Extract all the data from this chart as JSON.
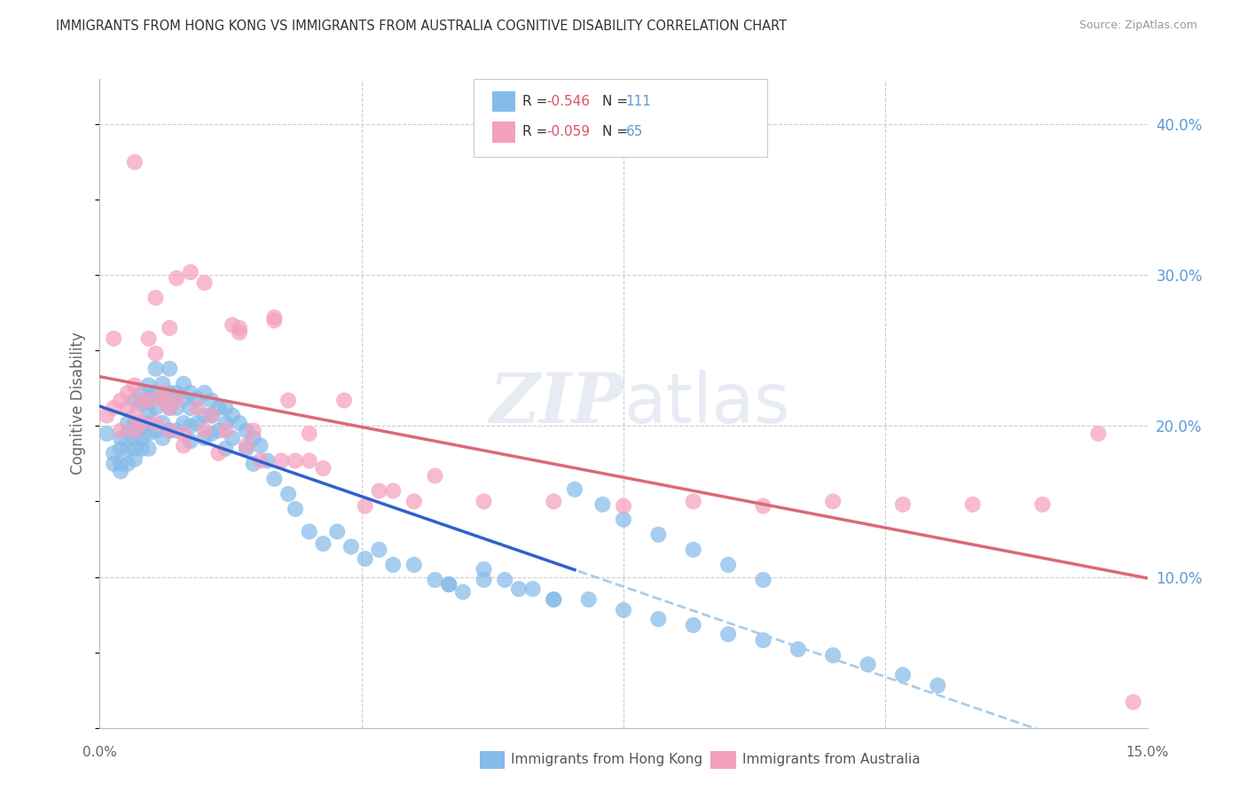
{
  "title": "IMMIGRANTS FROM HONG KONG VS IMMIGRANTS FROM AUSTRALIA COGNITIVE DISABILITY CORRELATION CHART",
  "source": "Source: ZipAtlas.com",
  "ylabel": "Cognitive Disability",
  "legend_label_hk": "Immigrants from Hong Kong",
  "legend_label_au": "Immigrants from Australia",
  "color_hk": "#85BBE8",
  "color_au": "#F4A0BE",
  "trendline_hk_color": "#3060CC",
  "trendline_au_color": "#DC6878",
  "trendline_ext_color": "#AACCE8",
  "background_color": "#FFFFFF",
  "xmin": 0.0,
  "xmax": 0.15,
  "ymin": 0.0,
  "ymax": 0.43,
  "hk_x": [
    0.001,
    0.002,
    0.002,
    0.003,
    0.003,
    0.003,
    0.003,
    0.004,
    0.004,
    0.004,
    0.004,
    0.005,
    0.005,
    0.005,
    0.005,
    0.005,
    0.006,
    0.006,
    0.006,
    0.006,
    0.006,
    0.007,
    0.007,
    0.007,
    0.007,
    0.007,
    0.007,
    0.008,
    0.008,
    0.008,
    0.008,
    0.009,
    0.009,
    0.009,
    0.009,
    0.01,
    0.01,
    0.01,
    0.01,
    0.011,
    0.011,
    0.011,
    0.012,
    0.012,
    0.012,
    0.013,
    0.013,
    0.013,
    0.013,
    0.014,
    0.014,
    0.015,
    0.015,
    0.015,
    0.016,
    0.016,
    0.016,
    0.017,
    0.017,
    0.018,
    0.018,
    0.018,
    0.019,
    0.019,
    0.02,
    0.021,
    0.021,
    0.022,
    0.022,
    0.023,
    0.024,
    0.025,
    0.027,
    0.028,
    0.03,
    0.032,
    0.034,
    0.036,
    0.038,
    0.04,
    0.042,
    0.045,
    0.048,
    0.05,
    0.052,
    0.055,
    0.058,
    0.062,
    0.065,
    0.07,
    0.075,
    0.08,
    0.085,
    0.09,
    0.095,
    0.1,
    0.105,
    0.11,
    0.115,
    0.12,
    0.05,
    0.055,
    0.06,
    0.065,
    0.068,
    0.072,
    0.075,
    0.08,
    0.085,
    0.09,
    0.095
  ],
  "hk_y": [
    0.195,
    0.182,
    0.175,
    0.192,
    0.185,
    0.175,
    0.17,
    0.202,
    0.195,
    0.185,
    0.175,
    0.217,
    0.202,
    0.192,
    0.185,
    0.178,
    0.222,
    0.215,
    0.2,
    0.192,
    0.185,
    0.227,
    0.218,
    0.21,
    0.202,
    0.195,
    0.185,
    0.238,
    0.222,
    0.212,
    0.197,
    0.228,
    0.218,
    0.202,
    0.192,
    0.238,
    0.222,
    0.212,
    0.197,
    0.222,
    0.212,
    0.197,
    0.228,
    0.218,
    0.202,
    0.222,
    0.212,
    0.2,
    0.19,
    0.218,
    0.202,
    0.222,
    0.207,
    0.192,
    0.217,
    0.207,
    0.195,
    0.212,
    0.197,
    0.212,
    0.202,
    0.185,
    0.207,
    0.192,
    0.202,
    0.197,
    0.185,
    0.192,
    0.175,
    0.187,
    0.177,
    0.165,
    0.155,
    0.145,
    0.13,
    0.122,
    0.13,
    0.12,
    0.112,
    0.118,
    0.108,
    0.108,
    0.098,
    0.095,
    0.09,
    0.105,
    0.098,
    0.092,
    0.085,
    0.085,
    0.078,
    0.072,
    0.068,
    0.062,
    0.058,
    0.052,
    0.048,
    0.042,
    0.035,
    0.028,
    0.095,
    0.098,
    0.092,
    0.085,
    0.158,
    0.148,
    0.138,
    0.128,
    0.118,
    0.108,
    0.098
  ],
  "au_x": [
    0.001,
    0.002,
    0.002,
    0.003,
    0.003,
    0.004,
    0.004,
    0.005,
    0.005,
    0.005,
    0.006,
    0.006,
    0.007,
    0.007,
    0.008,
    0.008,
    0.009,
    0.009,
    0.01,
    0.01,
    0.011,
    0.011,
    0.012,
    0.013,
    0.014,
    0.015,
    0.016,
    0.017,
    0.018,
    0.019,
    0.02,
    0.021,
    0.022,
    0.023,
    0.025,
    0.026,
    0.027,
    0.028,
    0.03,
    0.032,
    0.035,
    0.038,
    0.04,
    0.042,
    0.045,
    0.048,
    0.055,
    0.065,
    0.075,
    0.085,
    0.095,
    0.105,
    0.115,
    0.125,
    0.135,
    0.143,
    0.148,
    0.005,
    0.008,
    0.01,
    0.012,
    0.015,
    0.02,
    0.025,
    0.03
  ],
  "au_y": [
    0.207,
    0.258,
    0.212,
    0.197,
    0.217,
    0.222,
    0.212,
    0.227,
    0.207,
    0.197,
    0.217,
    0.202,
    0.258,
    0.217,
    0.248,
    0.202,
    0.222,
    0.217,
    0.212,
    0.197,
    0.217,
    0.298,
    0.187,
    0.302,
    0.212,
    0.197,
    0.207,
    0.182,
    0.197,
    0.267,
    0.262,
    0.187,
    0.197,
    0.177,
    0.272,
    0.177,
    0.217,
    0.177,
    0.177,
    0.172,
    0.217,
    0.147,
    0.157,
    0.157,
    0.15,
    0.167,
    0.15,
    0.15,
    0.147,
    0.15,
    0.147,
    0.15,
    0.148,
    0.148,
    0.148,
    0.195,
    0.017,
    0.375,
    0.285,
    0.265,
    0.195,
    0.295,
    0.265,
    0.27,
    0.195
  ]
}
